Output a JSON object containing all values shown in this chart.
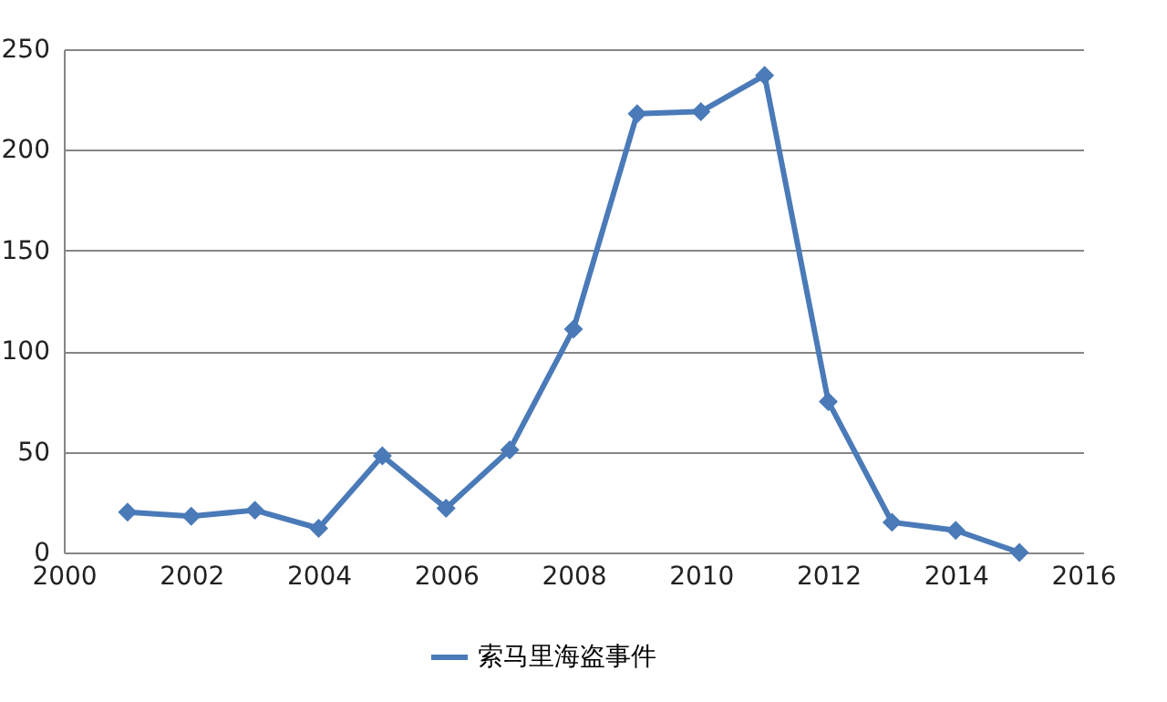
{
  "chart_data": {
    "type": "line",
    "x": [
      2001,
      2002,
      2003,
      2004,
      2005,
      2006,
      2007,
      2008,
      2009,
      2010,
      2011,
      2012,
      2013,
      2014,
      2015
    ],
    "series": [
      {
        "name": "索马里海盗事件",
        "color": "#4a7ab8",
        "values": [
          20,
          18,
          21,
          12,
          48,
          22,
          51,
          111,
          218,
          219,
          237,
          75,
          15,
          11,
          0
        ]
      }
    ],
    "xlim": [
      2000,
      2016
    ],
    "xticks": [
      2000,
      2002,
      2004,
      2006,
      2008,
      2010,
      2012,
      2014,
      2016
    ],
    "ylim": [
      0,
      250
    ],
    "yticks": [
      0,
      50,
      100,
      150,
      200,
      250
    ],
    "grid": "y",
    "legend": "bottom",
    "marker": "diamond",
    "line_style": "solid"
  }
}
